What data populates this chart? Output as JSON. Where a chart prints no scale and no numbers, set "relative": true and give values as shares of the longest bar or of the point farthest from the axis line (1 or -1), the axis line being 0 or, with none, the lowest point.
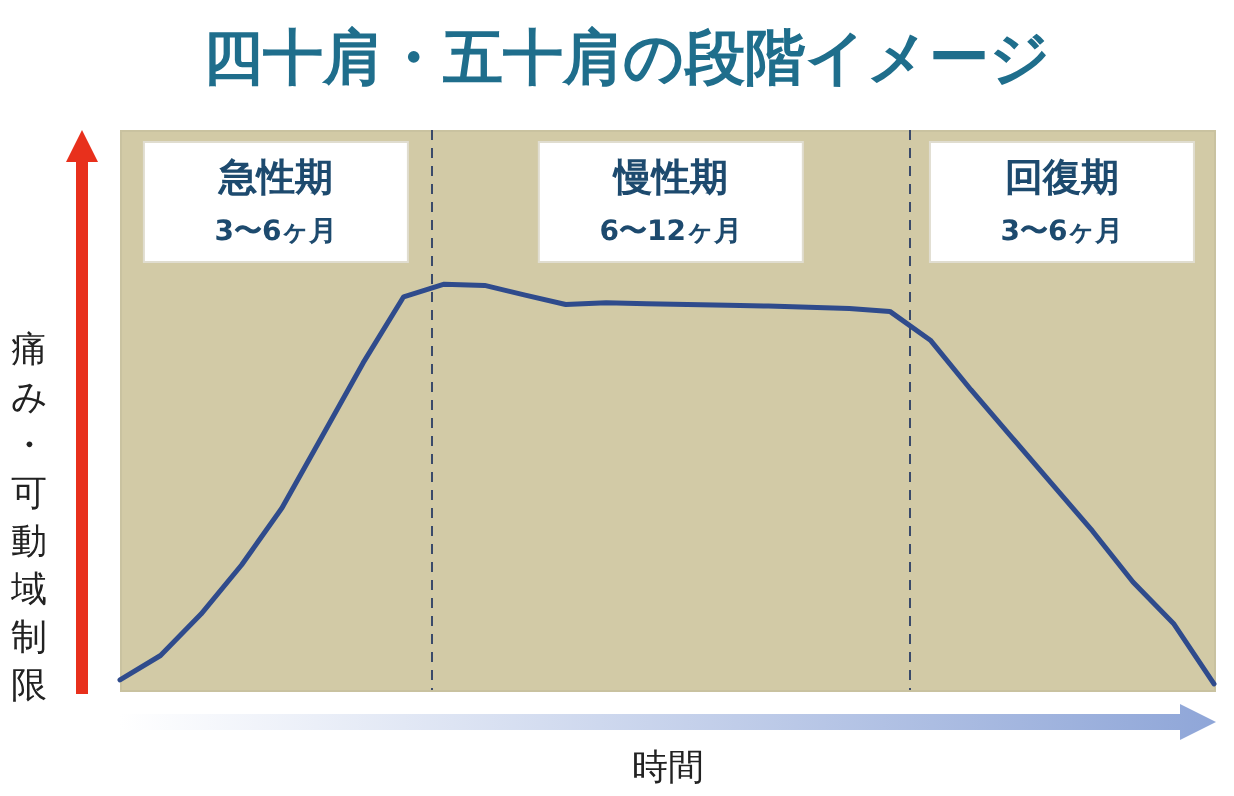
{
  "chart_data": {
    "type": "line",
    "title": "四十肩・五十肩の段階イメージ",
    "xlabel": "時間",
    "ylabel": "痛み・可動域制限",
    "relative": true,
    "tick_labels": false,
    "categories": [
      null,
      null,
      null,
      null,
      null,
      null,
      null,
      null,
      null,
      null,
      null,
      null,
      null,
      null,
      null,
      null,
      null,
      null,
      null,
      null,
      null,
      null,
      null,
      null,
      null,
      null,
      null,
      null
    ],
    "series": [
      {
        "color": "#2f4b8c",
        "values": [
          0.025,
          0.085,
          0.187,
          0.308,
          0.449,
          0.627,
          0.806,
          0.969,
          1,
          0.997,
          0.973,
          0.95,
          0.954,
          0.952,
          0.95,
          0.948,
          0.946,
          0.943,
          0.94,
          0.933,
          0.862,
          0.74,
          0.624,
          0.508,
          0.392,
          0.266,
          0.164,
          0.015
        ]
      }
    ],
    "annotations": [
      "急性期\n3〜6ヶ月",
      "慢性期\n6〜12ヶ月",
      "回復期\n3〜6ヶ月"
    ]
  }
}
